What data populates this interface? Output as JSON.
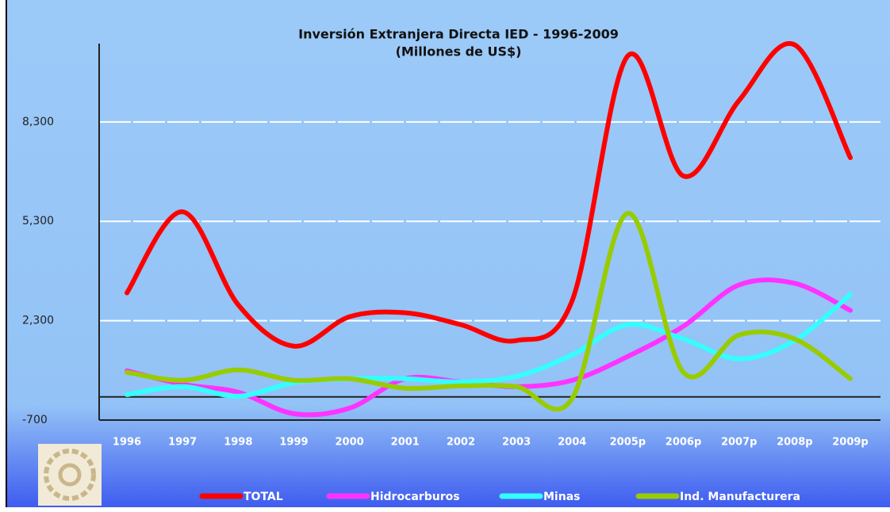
{
  "chart_data": {
    "type": "line",
    "title": "Inversión Extranjera Directa IED - 1996-2009",
    "subtitle": "(Millones de US$)",
    "categories": [
      "1996",
      "1997",
      "1998",
      "1999",
      "2000",
      "2001",
      "2002",
      "2003",
      "2004",
      "2005p",
      "2006p",
      "2007p",
      "2008p",
      "2009p"
    ],
    "series": [
      {
        "name": "TOTAL",
        "color": "#ff0000",
        "values": [
          3140,
          5588,
          2780,
          1532,
          2420,
          2540,
          2180,
          1700,
          2900,
          10292,
          6668,
          8948,
          10628,
          7220
        ]
      },
      {
        "name": "Hidrocarburos",
        "color": "#ff33ff",
        "values": [
          788,
          380,
          140,
          -508,
          -340,
          548,
          452,
          308,
          500,
          1220,
          2132,
          3380,
          3428,
          2612
        ]
      },
      {
        "name": "Minas",
        "color": "#33ffff",
        "values": [
          68,
          308,
          20,
          428,
          548,
          548,
          452,
          620,
          1268,
          2180,
          1748,
          1148,
          1700,
          3092
        ]
      },
      {
        "name": "Ind. Manufacturera",
        "color": "#99cc00",
        "values": [
          740,
          500,
          812,
          500,
          548,
          260,
          332,
          308,
          -52,
          5540,
          740,
          1868,
          1748,
          548
        ]
      }
    ],
    "ylim": [
      -700,
      11000
    ],
    "yticks": [
      -700,
      {
        "value": 2300,
        "label": "2,300"
      },
      {
        "value": 5300,
        "label": "5,300"
      },
      {
        "value": 8300,
        "label": "8,300"
      }
    ],
    "grid": true
  }
}
